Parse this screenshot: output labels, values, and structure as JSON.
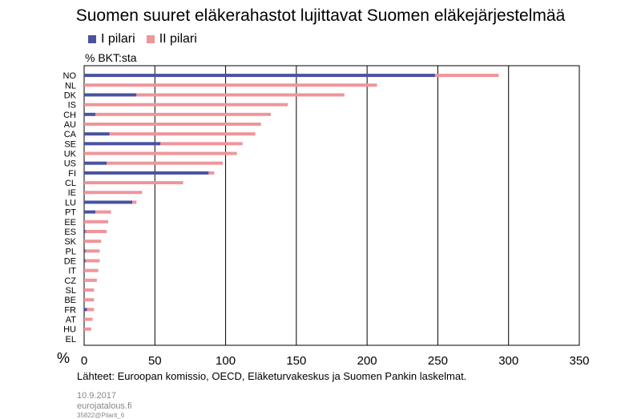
{
  "title": "Suomen suuret eläkerahastot lujittavat Suomen eläkejärjestelmää",
  "unit_label": "% BKT:sta",
  "axis_symbol": "%",
  "source": "Lähteet: Euroopan komissio, OECD, Eläketurvakeskus ja Suomen Pankin laskelmat.",
  "footer": {
    "date": "10.9.2017",
    "site": "eurojatalous.fi",
    "code": "35822@Pilarit_6"
  },
  "chart_data": {
    "type": "bar",
    "orientation": "horizontal",
    "stacked": true,
    "categories": [
      "NO",
      "NL",
      "DK",
      "IS",
      "CH",
      "AU",
      "CA",
      "SE",
      "UK",
      "US",
      "FI",
      "CL",
      "IE",
      "LU",
      "PT",
      "EE",
      "ES",
      "SK",
      "PL",
      "DE",
      "IT",
      "CZ",
      "SL",
      "BE",
      "FR",
      "AT",
      "HU",
      "EL"
    ],
    "series": [
      {
        "name": "I pilari",
        "color": "#4a52a0",
        "values": [
          248,
          0,
          37,
          0,
          8,
          0,
          18,
          54,
          0,
          16,
          88,
          0,
          0,
          34,
          8,
          0,
          1,
          0,
          1,
          1,
          0,
          0,
          0,
          0,
          2,
          0,
          0,
          0
        ]
      },
      {
        "name": "II pilari",
        "color": "#f0959a",
        "values": [
          45,
          207,
          147,
          144,
          124,
          125,
          103,
          58,
          108,
          82,
          4,
          70,
          41,
          3,
          11,
          17,
          15,
          12,
          10,
          10,
          10,
          9,
          7,
          7,
          5,
          6,
          5,
          0
        ]
      }
    ],
    "xlim": [
      0,
      350
    ],
    "xticks": [
      0,
      50,
      100,
      150,
      200,
      250,
      300,
      350
    ],
    "xlabel": "",
    "ylabel": "% BKT:sta",
    "vertical_gridlines": true,
    "legend": "top-left"
  }
}
